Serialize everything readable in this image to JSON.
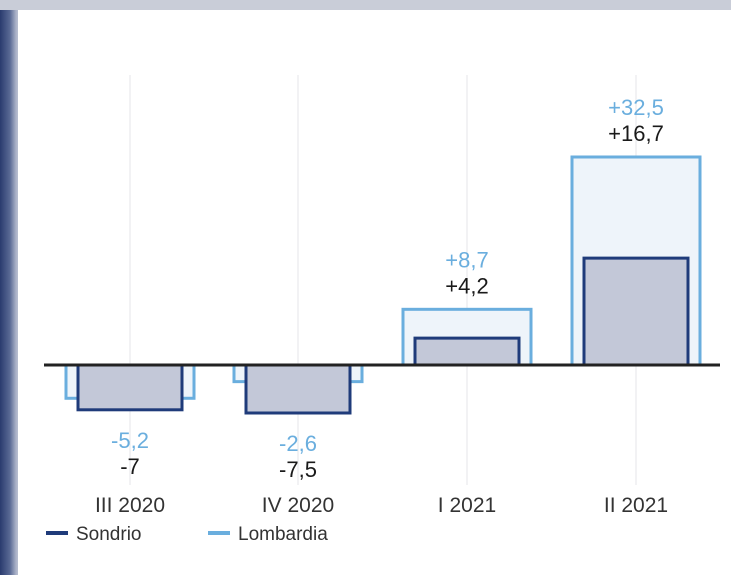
{
  "chart_data": {
    "type": "bar",
    "categories": [
      "III 2020",
      "IV 2020",
      "I 2021",
      "II 2021"
    ],
    "series": [
      {
        "name": "Sondrio",
        "values": [
          -7,
          -7.5,
          4.2,
          16.7
        ],
        "labels": [
          "-7",
          "-7,5",
          "+4,2",
          "+16,7"
        ]
      },
      {
        "name": "Lombardia",
        "values": [
          -5.2,
          -2.6,
          8.7,
          32.5
        ],
        "labels": [
          "-5,2",
          "-2,6",
          "+8,7",
          "+32,5"
        ]
      }
    ],
    "ylim": [
      -9,
      37
    ],
    "grid": "vertical",
    "legend_position": "bottom-left"
  },
  "colors": {
    "sondrio": "#1f3b7a",
    "lombardia": "#6aaede",
    "sondrio_fill": "#c3c8d8",
    "lombardia_fill": "#eef4fa",
    "axis": "#222222",
    "grid": "#e4e6ea",
    "category_text": "#333333"
  }
}
